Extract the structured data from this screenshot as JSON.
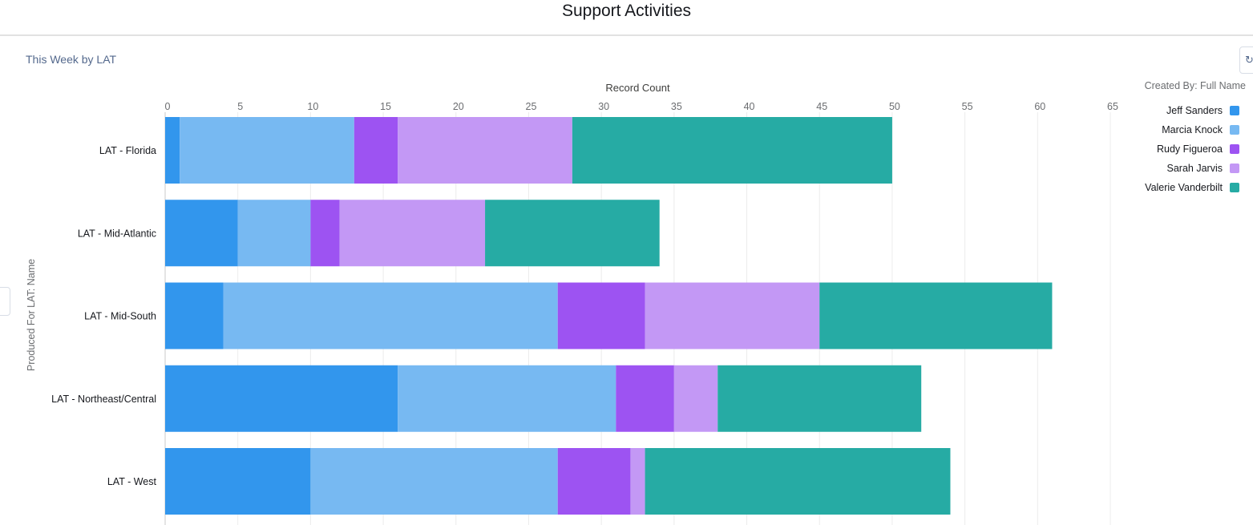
{
  "page": {
    "title": "Support Activities",
    "subtitle": "This Week by LAT",
    "refresh_icon": "refresh-icon"
  },
  "legend": {
    "title": "Created By: Full Name"
  },
  "chart_data": {
    "type": "bar",
    "orientation": "horizontal",
    "stacked": true,
    "xlabel": "Record Count",
    "ylabel": "Produced For LAT: Name",
    "xlim": [
      0,
      65
    ],
    "x_ticks": [
      0,
      5,
      10,
      15,
      20,
      25,
      30,
      35,
      40,
      45,
      50,
      55,
      60,
      65
    ],
    "x_axis_position": "top",
    "grid": true,
    "legend_position": "right",
    "categories": [
      "LAT - Florida",
      "LAT - Mid-Atlantic",
      "LAT - Mid-South",
      "LAT - Northeast/Central",
      "LAT - West"
    ],
    "series": [
      {
        "name": "Jeff Sanders",
        "color": "#3296ed",
        "values": [
          1,
          5,
          4,
          16,
          10
        ]
      },
      {
        "name": "Marcia Knock",
        "color": "#77b9f2",
        "values": [
          12,
          5,
          23,
          15,
          17
        ]
      },
      {
        "name": "Rudy Figueroa",
        "color": "#9d53f2",
        "values": [
          3,
          2,
          6,
          4,
          5
        ]
      },
      {
        "name": "Sarah Jarvis",
        "color": "#c398f5",
        "values": [
          12,
          10,
          12,
          3,
          1
        ]
      },
      {
        "name": "Valerie Vanderbilt",
        "color": "#26aba4",
        "values": [
          22,
          12,
          16,
          14,
          21
        ]
      }
    ]
  }
}
